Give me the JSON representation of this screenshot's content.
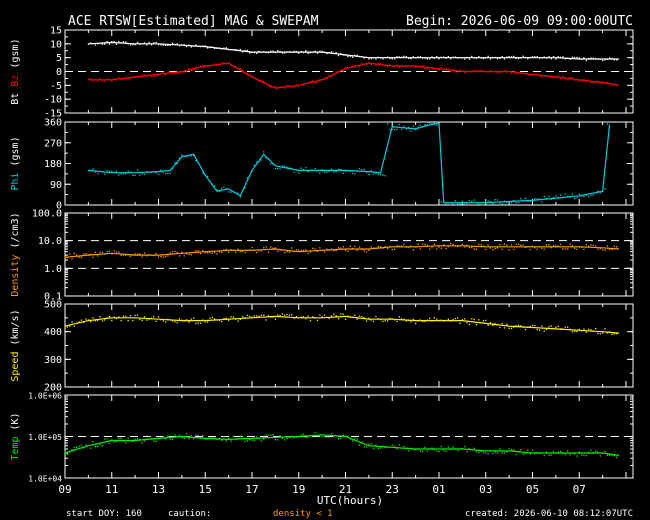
{
  "header": {
    "title": "ACE RTSW[Estimated] MAG & SWEPAM",
    "begin": "Begin: 2026-06-09 09:00:00UTC"
  },
  "footer": {
    "start_doy": "start DOY: 160",
    "caution": "caution:",
    "density_note": "density < 1",
    "created": "created: 2026-06-10 08:12:07UTC"
  },
  "colors": {
    "frame": "#ffffff",
    "bt": "#ffffff",
    "bz": "#ff0000",
    "phi": "#00ccdd",
    "density": "#ff9900",
    "speed": "#ffee00",
    "temp": "#00ee00",
    "caution_note": "#ff9900"
  },
  "chart_data": {
    "type": "line",
    "x_axis": {
      "label": "UTC(hours)",
      "range_hours": [
        9,
        33.3
      ],
      "tick_labels": [
        "09",
        "11",
        "13",
        "15",
        "17",
        "19",
        "21",
        "23",
        "01",
        "03",
        "05",
        "07"
      ]
    },
    "panels": [
      {
        "id": "mag",
        "ylabel_parts": [
          "Bt",
          "Bz",
          "(gsm)"
        ],
        "ylim": [
          -15,
          15
        ],
        "tick_labels": [
          "15",
          "10",
          "5",
          "0",
          "-5",
          "-10",
          "-15"
        ],
        "tick_values": [
          15,
          10,
          5,
          0,
          -5,
          -10,
          -15
        ],
        "reference_lines": [
          0
        ],
        "series": [
          {
            "name": "Bt",
            "x": [
              10,
              11,
              12,
              13,
              14,
              15,
              16,
              17,
              18,
              19,
              20,
              21,
              22,
              23,
              24,
              25,
              26,
              27,
              28,
              29,
              30,
              31,
              32,
              32.7
            ],
            "values": [
              10,
              10.5,
              10,
              10,
              9.5,
              9,
              8,
              7,
              7,
              7,
              7,
              6,
              5,
              5,
              5,
              5,
              5,
              5,
              5,
              5,
              5,
              4.5,
              4.5,
              4.5
            ]
          },
          {
            "name": "Bz",
            "x": [
              10,
              11,
              12,
              13,
              14,
              15,
              16,
              17,
              18,
              19,
              20,
              21,
              22,
              23,
              24,
              25,
              26,
              27,
              28,
              29,
              30,
              31,
              32,
              32.7
            ],
            "values": [
              -3,
              -3,
              -2,
              -1,
              0,
              2,
              3,
              -2,
              -6,
              -5,
              -3,
              1,
              3,
              2,
              2,
              1,
              0,
              0,
              0,
              -1,
              -2,
              -3,
              -4,
              -5
            ]
          }
        ]
      },
      {
        "id": "phi",
        "ylabel": "Phi (gsm)",
        "ylim": [
          0,
          360
        ],
        "tick_labels": [
          "360",
          "270",
          "180",
          "90",
          "0"
        ],
        "tick_values": [
          360,
          270,
          180,
          90,
          0
        ],
        "series": [
          {
            "name": "Phi",
            "x": [
              10,
              11,
              12,
              13,
              13.5,
              14,
              14.5,
              15,
              15.5,
              16,
              16.5,
              17,
              17.5,
              18,
              19,
              20,
              21,
              22,
              22.5,
              23,
              24,
              24.5,
              25,
              25.2,
              26,
              27,
              28,
              29,
              30,
              31,
              32,
              32.3
            ],
            "values": [
              150,
              140,
              140,
              145,
              150,
              210,
              220,
              130,
              60,
              70,
              40,
              150,
              220,
              170,
              150,
              150,
              150,
              145,
              140,
              340,
              330,
              345,
              355,
              10,
              10,
              10,
              15,
              20,
              30,
              40,
              60,
              350
            ]
          }
        ]
      },
      {
        "id": "density",
        "ylabel": "Density (/cm3)",
        "scale": "log",
        "ylim": [
          0.1,
          100
        ],
        "tick_labels": [
          "100.0",
          "10.0",
          "1.0",
          "0.1"
        ],
        "tick_values": [
          100,
          10,
          1,
          0.1
        ],
        "reference_lines": [
          10,
          1
        ],
        "series": [
          {
            "name": "Density",
            "x": [
              9,
              10,
              11,
              12,
              13,
              14,
              15,
              16,
              17,
              18,
              19,
              20,
              21,
              22,
              23,
              24,
              25,
              26,
              27,
              28,
              29,
              30,
              31,
              32,
              32.7
            ],
            "values": [
              2.5,
              3,
              3.5,
              3,
              3,
              3.5,
              4,
              4.5,
              4.5,
              5,
              4,
              4.5,
              5,
              5,
              6,
              6,
              6.5,
              6.5,
              6,
              6,
              6,
              6,
              6,
              5.5,
              5
            ]
          }
        ]
      },
      {
        "id": "speed",
        "ylabel": "Speed (km/s)",
        "ylim": [
          200,
          500
        ],
        "tick_labels": [
          "500",
          "400",
          "300",
          "200"
        ],
        "tick_values": [
          500,
          400,
          300,
          200
        ],
        "series": [
          {
            "name": "Speed",
            "x": [
              9,
              10,
              11,
              12,
              13,
              14,
              15,
              16,
              17,
              18,
              19,
              20,
              21,
              22,
              23,
              24,
              25,
              26,
              27,
              28,
              29,
              30,
              31,
              32,
              32.7
            ],
            "values": [
              420,
              440,
              450,
              450,
              445,
              440,
              440,
              445,
              450,
              455,
              450,
              450,
              455,
              445,
              445,
              440,
              440,
              440,
              430,
              420,
              415,
              410,
              405,
              400,
              395
            ]
          }
        ]
      },
      {
        "id": "temp",
        "ylabel": "Temp (K)",
        "scale": "log",
        "ylim": [
          10000,
          1000000
        ],
        "tick_labels": [
          "1.0E+06",
          "1.0E+05",
          "1.0E+04"
        ],
        "tick_values": [
          1000000,
          100000,
          10000
        ],
        "reference_lines": [
          100000
        ],
        "series": [
          {
            "name": "Temp",
            "x": [
              9,
              10,
              11,
              12,
              13,
              14,
              15,
              16,
              17,
              18,
              19,
              20,
              21,
              22,
              23,
              24,
              25,
              26,
              27,
              28,
              29,
              30,
              31,
              32,
              32.7
            ],
            "values": [
              40000,
              60000,
              80000,
              80000,
              90000,
              100000,
              90000,
              85000,
              90000,
              95000,
              100000,
              110000,
              100000,
              60000,
              55000,
              50000,
              50000,
              50000,
              45000,
              45000,
              40000,
              40000,
              40000,
              40000,
              35000
            ]
          }
        ]
      }
    ]
  }
}
